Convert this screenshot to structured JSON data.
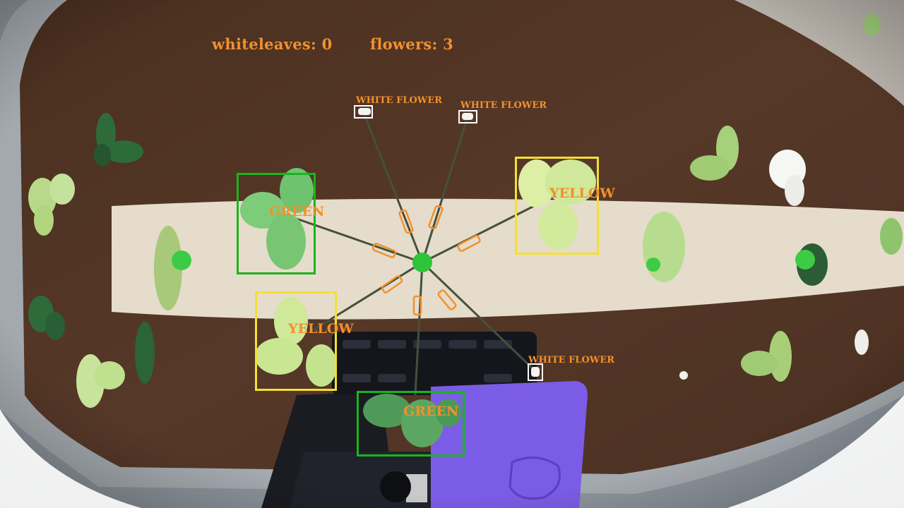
{
  "hud": {
    "whiteleaves": "whiteleaves: 0",
    "flowers": "flowers: 3"
  },
  "detections": [
    {
      "label": "GREEN",
      "kind": "green-leaf"
    },
    {
      "label": "GREEN",
      "kind": "green-leaf"
    },
    {
      "label": "YELLOW",
      "kind": "yellow-leaf"
    },
    {
      "label": "YELLOW",
      "kind": "yellow-leaf"
    },
    {
      "label": "WHITE FLOWER",
      "kind": "white-flower"
    },
    {
      "label": "WHITE FLOWER",
      "kind": "white-flower"
    },
    {
      "label": "WHITE FLOWER",
      "kind": "white-flower"
    }
  ],
  "colors": {
    "label_text": "#f2902e",
    "green_box": "#19b51d",
    "yellow_box": "#f4e032",
    "white_box": "#ffffff"
  }
}
